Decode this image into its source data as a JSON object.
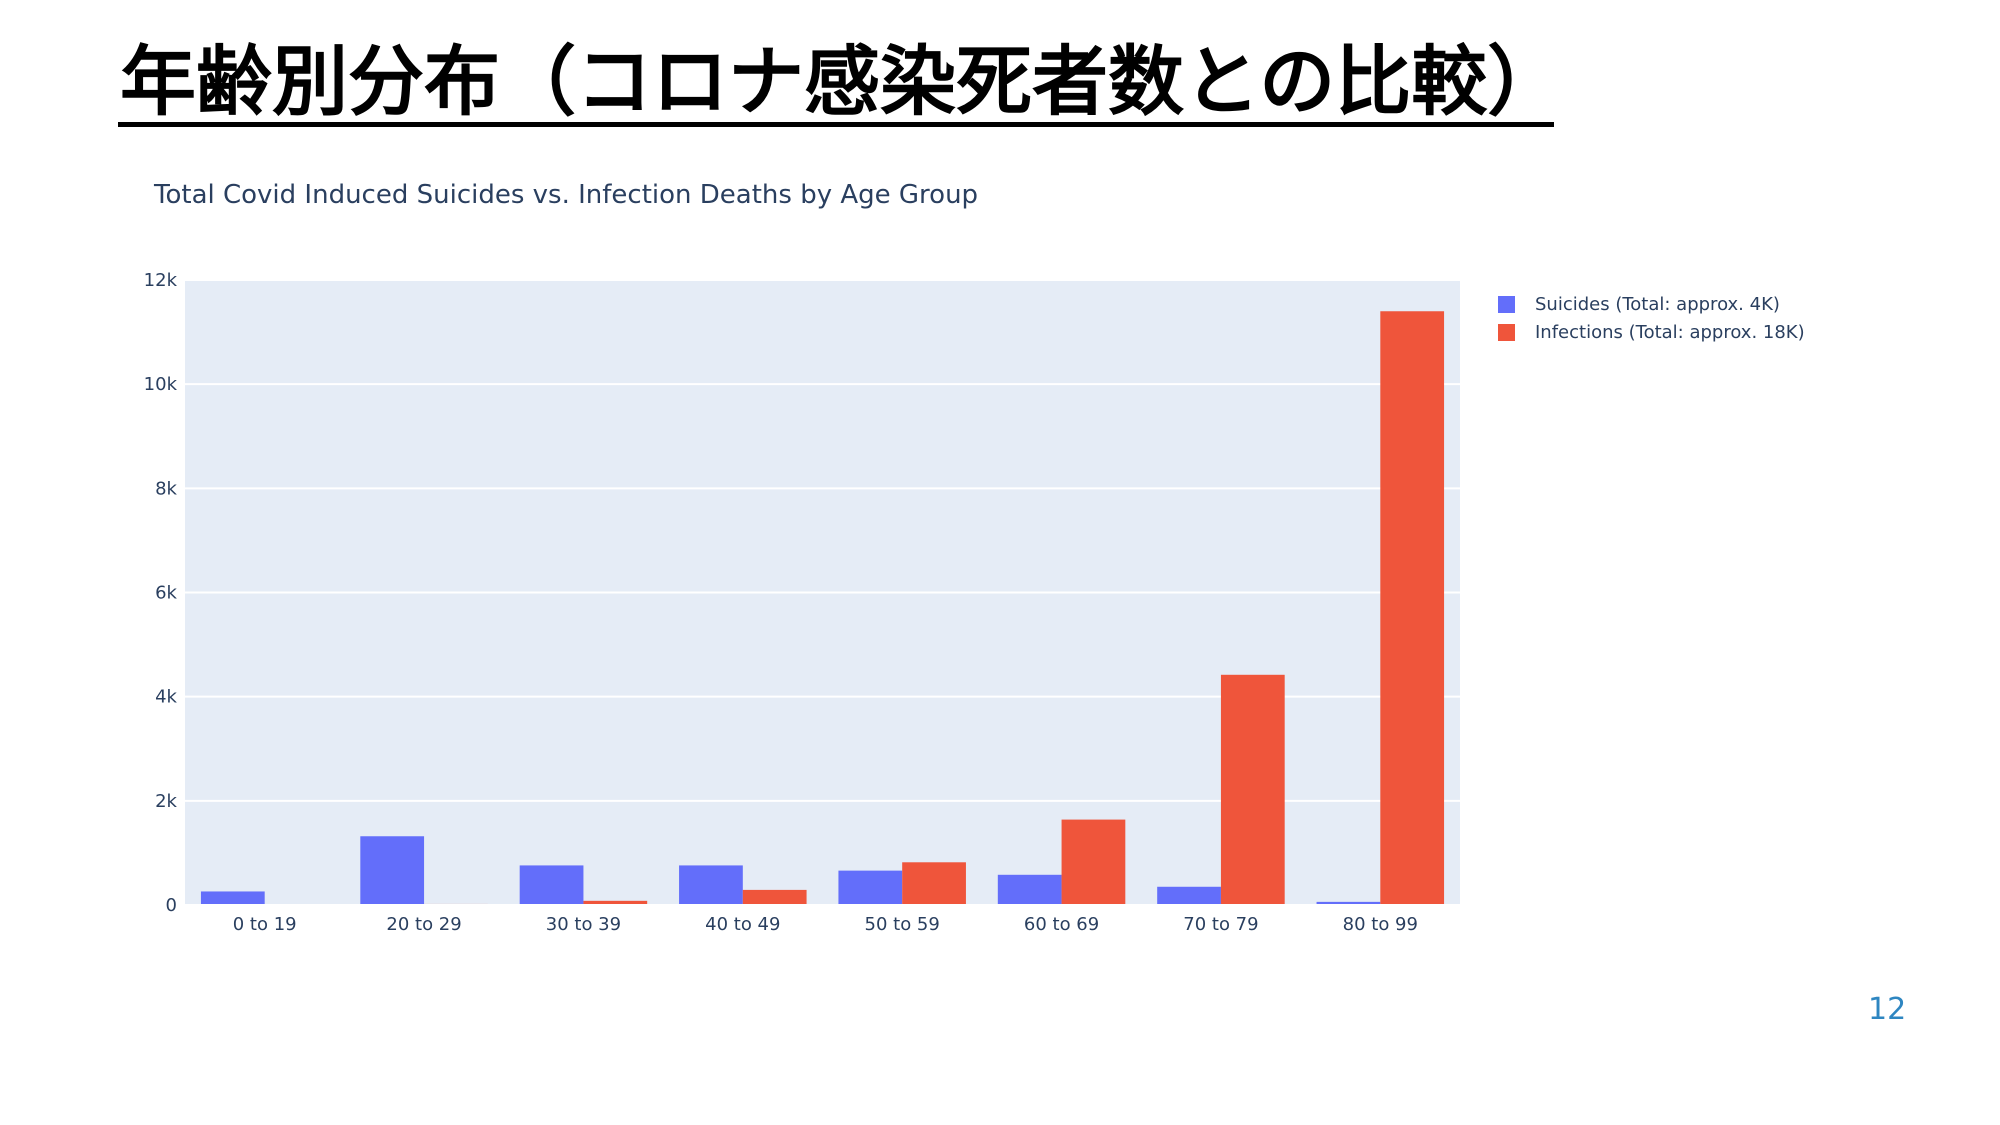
{
  "slide": {
    "title": "年齢別分布（コロナ感染死者数との比較）",
    "page_number": "12"
  },
  "chart_data": {
    "type": "bar",
    "title": "Total Covid Induced Suicides vs. Infection Deaths by Age Group",
    "xlabel": "",
    "ylabel": "",
    "categories": [
      "0 to 19",
      "20 to 29",
      "30 to 39",
      "40 to 49",
      "50 to 59",
      "60 to 69",
      "70 to 79",
      "80 to 99"
    ],
    "series": [
      {
        "name": "Suicides (Total: approx. 4K)",
        "color": "#636efa",
        "values": [
          260,
          1320,
          760,
          760,
          660,
          580,
          350,
          60
        ]
      },
      {
        "name": "Infections (Total: approx. 18K)",
        "color": "#ef553b",
        "values": [
          5,
          20,
          80,
          290,
          820,
          1640,
          4420,
          11400
        ]
      }
    ],
    "ylim": [
      0,
      12000
    ],
    "yticks": [
      0,
      2000,
      4000,
      6000,
      8000,
      10000,
      12000
    ],
    "ytick_labels": [
      "0",
      "2k",
      "4k",
      "6k",
      "8k",
      "10k",
      "12k"
    ],
    "grid": true,
    "plot_background": "#e5ecf6",
    "legend_position": "right"
  }
}
